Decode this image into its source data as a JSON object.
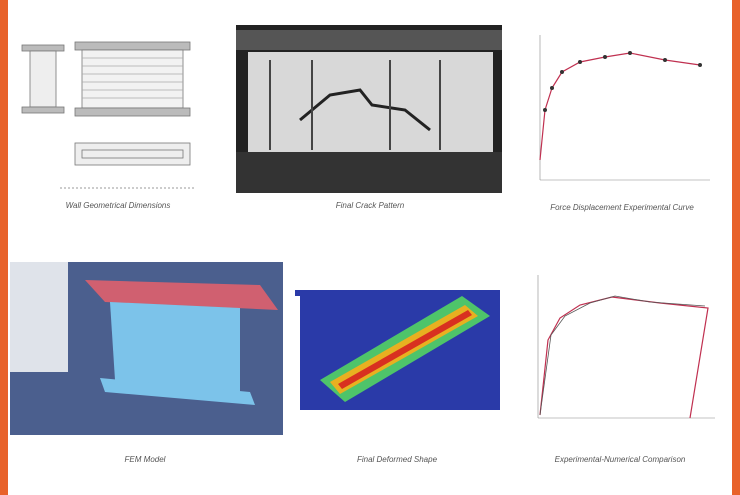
{
  "figure": {
    "panels": [
      {
        "caption": "Wall Geometrical Dimensions"
      },
      {
        "caption": "Final Crack Pattern"
      },
      {
        "caption": "Force Displacement Experimental Curve"
      },
      {
        "caption": "FEM Model"
      },
      {
        "caption": "Final Deformed Shape"
      },
      {
        "caption": "Experimental-Numerical Comparison"
      }
    ]
  }
}
